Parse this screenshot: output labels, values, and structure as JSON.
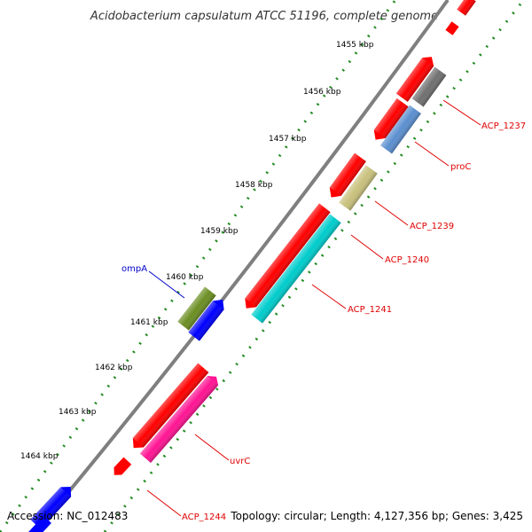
{
  "title": "Acidobacterium capsulatum ATCC 51196, complete genome",
  "footer": {
    "accession": "Accession: NC_012483",
    "summary": "Topology: circular; Length: 4,127,356 bp; Genes: 3,425"
  },
  "colors": {
    "backbone": "#808080",
    "ticks": "#228b22",
    "label_red": "#e00000",
    "label_blue": "#0000cc"
  },
  "scale_labels": [
    "1455 kbp",
    "1456 kbp",
    "1457 kbp",
    "1458 kbp",
    "1459 kbp",
    "1460 kbp",
    "1461 kbp",
    "1462 kbp",
    "1463 kbp",
    "1464 kbp"
  ],
  "gene_labels": [
    {
      "name": "ACP_1237",
      "color": "#e00000"
    },
    {
      "name": "proC",
      "color": "#e00000"
    },
    {
      "name": "ACP_1239",
      "color": "#e00000"
    },
    {
      "name": "ACP_1240",
      "color": "#e00000"
    },
    {
      "name": "ACP_1241",
      "color": "#e00000"
    },
    {
      "name": "ompA",
      "color": "#0000cc"
    },
    {
      "name": "uvrC",
      "color": "#e00000"
    },
    {
      "name": "ACP_1244",
      "color": "#e00000"
    }
  ]
}
